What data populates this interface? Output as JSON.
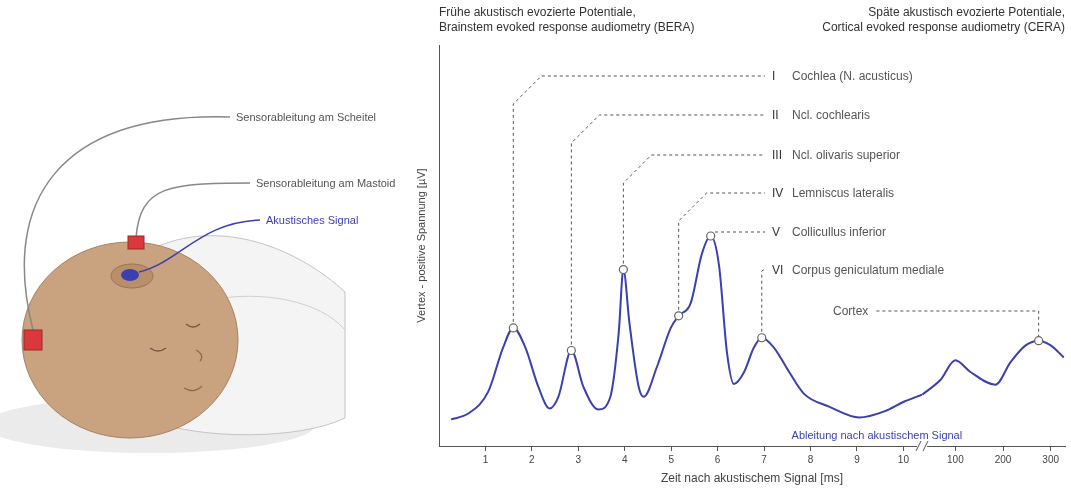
{
  "illustration": {
    "labels": [
      {
        "text": "Sensorableitung am Scheitel"
      },
      {
        "text": "Sensorableitung am Mastoid"
      },
      {
        "text": "Akustisches Signal",
        "color": "#3b3fb0"
      }
    ]
  },
  "chart_data": [
    {
      "type": "line",
      "title": "Frühe akustisch evozierte Potentiale, Brainstem evoked response audiometry (BERA)",
      "xlabel": "Zeit nach akustischem Signal [ms]",
      "ylabel": "Vertex - positive Spannung [µV]",
      "x": [
        0.26,
        0.63,
        1.06,
        1.38,
        1.6,
        1.86,
        2.14,
        2.38,
        2.57,
        2.85,
        3.11,
        3.43,
        3.69,
        3.87,
        3.97,
        4.1,
        4.3,
        4.41,
        4.69,
        4.99,
        5.16,
        5.42,
        5.66,
        5.85,
        6.03,
        6.2,
        6.35,
        6.57,
        6.78,
        6.95,
        7.21,
        7.54,
        7.86,
        8.4,
        9.05,
        9.59,
        10.02,
        10.4
      ],
      "series": [
        {
          "name": "Ableitung nach akustischem Signal",
          "color": "#3b3fb0",
          "values": [
            0.73,
            0.89,
            1.49,
            2.7,
            3.24,
            2.7,
            1.62,
            1.03,
            1.35,
            2.62,
            1.62,
            1,
            1.35,
            3.11,
            4.84,
            3.38,
            1.62,
            1.35,
            2.16,
            3.24,
            3.57,
            3.92,
            5.27,
            5.76,
            4.95,
            2.57,
            1.7,
            2.03,
            2.7,
            2.97,
            2.7,
            2.03,
            1.43,
            1.08,
            0.78,
            0.95,
            1.22,
            1.41
          ]
        }
      ],
      "xlim": [
        0,
        10.4
      ],
      "xticks": [
        1,
        2,
        3,
        4,
        5,
        6,
        7,
        8,
        9,
        10
      ],
      "ylim": [
        0,
        11
      ],
      "yticks": [],
      "tick_labels": "x",
      "grid": false,
      "annotations": [
        {
          "x": 1.6,
          "y": 3.24,
          "label": "I",
          "text": "Cochlea (N. acusticus)"
        },
        {
          "x": 2.85,
          "y": 2.62,
          "label": "II",
          "text": "Ncl. cochlearis"
        },
        {
          "x": 3.97,
          "y": 4.84,
          "label": "III",
          "text": "Ncl. olivaris superior"
        },
        {
          "x": 5.16,
          "y": 3.57,
          "label": "IV",
          "text": "Lemniscus lateralis"
        },
        {
          "x": 5.85,
          "y": 5.76,
          "label": "V",
          "text": "Collicullus inferior"
        },
        {
          "x": 6.95,
          "y": 2.97,
          "label": "VI",
          "text": "Corpus geniculatum mediale"
        }
      ]
    },
    {
      "type": "line",
      "title": "Späte akustisch evozierte Potentiale, Cortical evoked response audiometry (CERA)",
      "x": [
        30.5,
        68.4,
        100,
        131.6,
        184,
        215.8,
        247.4,
        274.7,
        300,
        327.4
      ],
      "series": [
        {
          "color": "#3b3fb0",
          "values": [
            1.41,
            1.81,
            2.35,
            2.03,
            1.68,
            2.3,
            2.76,
            2.89,
            2.76,
            2.43
          ]
        }
      ],
      "xlim": [
        30,
        330
      ],
      "xticks": [
        100,
        200,
        300
      ],
      "ylim": [
        0,
        11
      ],
      "yticks": [],
      "tick_labels": "x",
      "grid": false,
      "annotations": [
        {
          "x": 274.7,
          "y": 2.89,
          "text": "Cortex"
        }
      ]
    }
  ]
}
